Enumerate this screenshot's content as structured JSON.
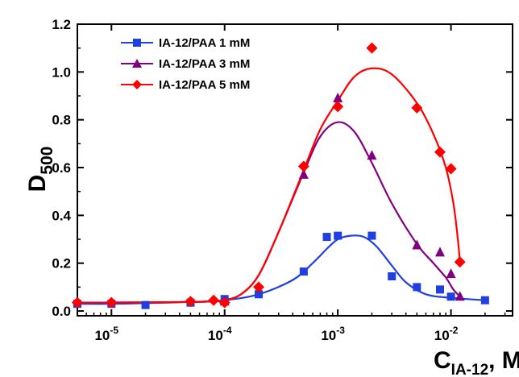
{
  "chart_data": {
    "type": "scatter",
    "title": "",
    "ylabel_main": "D",
    "ylabel_sub": "500",
    "xlabel_main": "C",
    "xlabel_sub": "IA-12",
    "xlabel_unit": ", M",
    "x_scale": "log",
    "xlim": [
      5e-06,
      0.035
    ],
    "ylim": [
      -0.02,
      1.2
    ],
    "grid": false,
    "legend_position": "top-left",
    "x_ticks": [
      {
        "value": 1e-05,
        "base": "10",
        "exp": "-5"
      },
      {
        "value": 0.0001,
        "base": "10",
        "exp": "-4"
      },
      {
        "value": 0.001,
        "base": "10",
        "exp": "-3"
      },
      {
        "value": 0.01,
        "base": "10",
        "exp": "-2"
      }
    ],
    "y_ticks": [
      {
        "value": 0.0,
        "label": "0.0"
      },
      {
        "value": 0.2,
        "label": "0.2"
      },
      {
        "value": 0.4,
        "label": "0.4"
      },
      {
        "value": 0.6,
        "label": "0.6"
      },
      {
        "value": 0.8,
        "label": "0.8"
      },
      {
        "value": 1.0,
        "label": "1.0"
      },
      {
        "value": 1.2,
        "label": "1.2"
      }
    ],
    "series": [
      {
        "name": "IA-12/PAA 1 mM",
        "color": "#1f3fe0",
        "marker": "square",
        "x": [
          5e-06,
          1e-05,
          2e-05,
          5e-05,
          0.0001,
          0.0002,
          0.0005,
          0.0008,
          0.001,
          0.002,
          0.003,
          0.005,
          0.008,
          0.01,
          0.02
        ],
        "y": [
          0.03,
          0.03,
          0.025,
          0.035,
          0.05,
          0.07,
          0.165,
          0.31,
          0.315,
          0.315,
          0.145,
          0.1,
          0.09,
          0.06,
          0.045
        ],
        "curve_x": [
          5e-06,
          1e-05,
          2e-05,
          5e-05,
          0.0001,
          0.0002,
          0.0004,
          0.0006,
          0.0008,
          0.001,
          0.0013,
          0.0017,
          0.0022,
          0.003,
          0.004,
          0.006,
          0.01,
          0.02
        ],
        "curve_y": [
          0.03,
          0.03,
          0.033,
          0.038,
          0.045,
          0.07,
          0.13,
          0.2,
          0.26,
          0.3,
          0.315,
          0.31,
          0.27,
          0.19,
          0.12,
          0.07,
          0.055,
          0.045
        ]
      },
      {
        "name": "IA-12/PAA 3 mM",
        "color": "#800080",
        "marker": "triangle",
        "x": [
          0.0001,
          0.0005,
          0.001,
          0.002,
          0.005,
          0.008,
          0.01,
          0.012
        ],
        "y": [
          0.04,
          0.57,
          0.89,
          0.65,
          0.275,
          0.245,
          0.155,
          0.06
        ],
        "curve_x": [
          5e-06,
          2e-05,
          5e-05,
          8e-05,
          0.0001,
          0.00014,
          0.0002,
          0.0003,
          0.0005,
          0.0007,
          0.001,
          0.0014,
          0.002,
          0.003,
          0.005,
          0.007,
          0.009,
          0.0105,
          0.012
        ],
        "curve_y": [
          0.035,
          0.036,
          0.038,
          0.04,
          0.045,
          0.07,
          0.15,
          0.33,
          0.58,
          0.73,
          0.79,
          0.75,
          0.62,
          0.45,
          0.28,
          0.2,
          0.14,
          0.09,
          0.06
        ]
      },
      {
        "name": "IA-12/PAA 5 mM",
        "color": "#ff0000",
        "marker": "diamond",
        "x": [
          5e-06,
          1e-05,
          5e-05,
          8e-05,
          0.0001,
          0.0002,
          0.0005,
          0.001,
          0.002,
          0.005,
          0.008,
          0.01,
          0.012
        ],
        "y": [
          0.035,
          0.035,
          0.04,
          0.045,
          0.035,
          0.1,
          0.605,
          0.855,
          1.1,
          0.85,
          0.665,
          0.595,
          0.205
        ],
        "curve_x": [
          5e-06,
          2e-05,
          5e-05,
          8e-05,
          0.0001,
          0.00014,
          0.0002,
          0.0003,
          0.0005,
          0.0007,
          0.001,
          0.0014,
          0.002,
          0.003,
          0.005,
          0.007,
          0.009,
          0.0105,
          0.0115,
          0.012
        ],
        "curve_y": [
          0.035,
          0.036,
          0.038,
          0.04,
          0.045,
          0.07,
          0.15,
          0.33,
          0.59,
          0.76,
          0.88,
          0.98,
          1.015,
          0.99,
          0.87,
          0.74,
          0.6,
          0.45,
          0.3,
          0.205
        ]
      }
    ]
  }
}
